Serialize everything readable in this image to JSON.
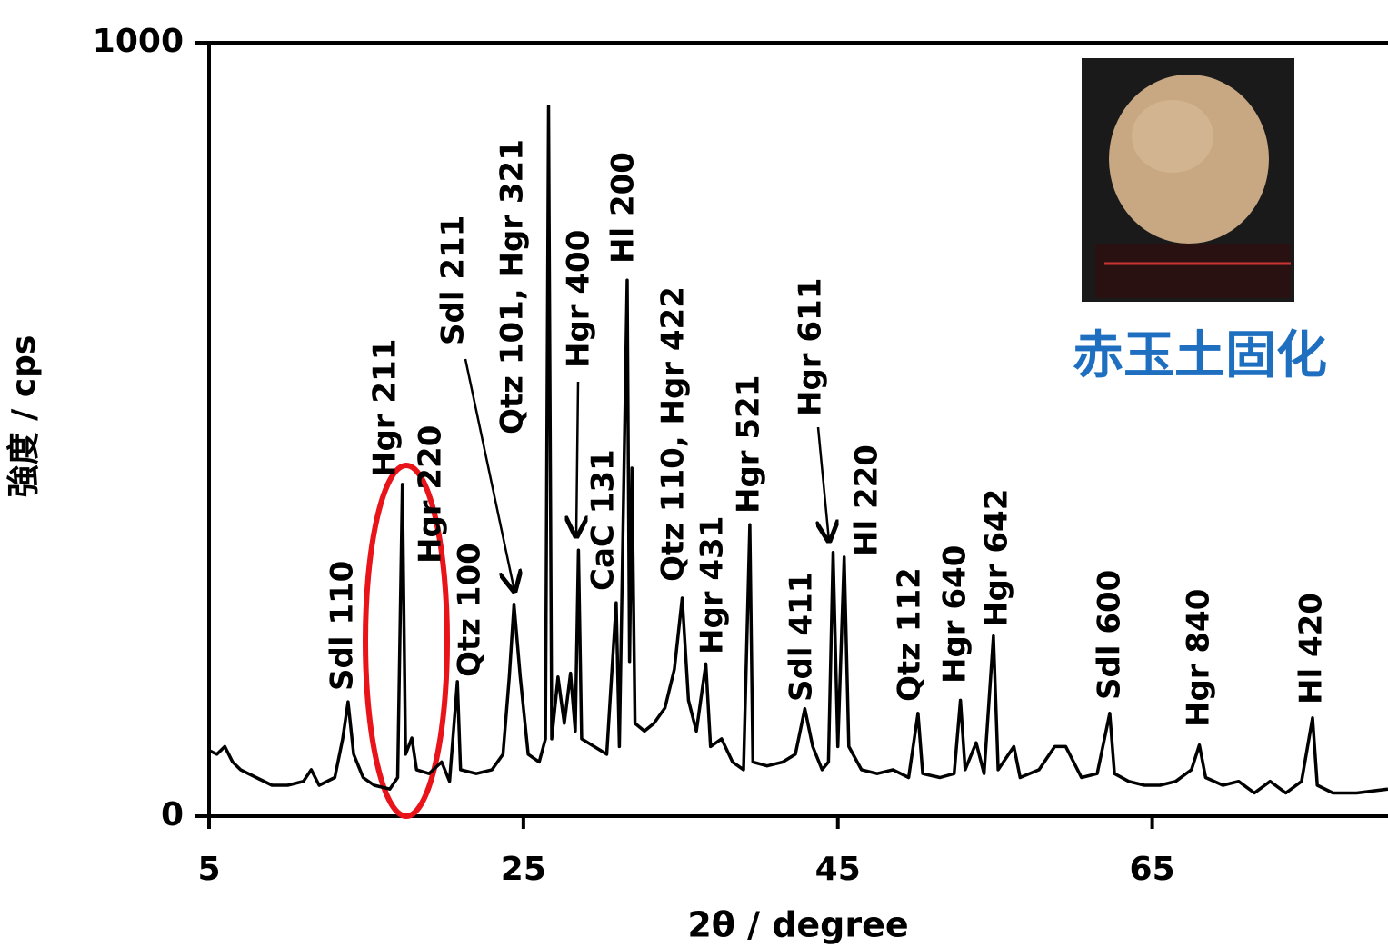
{
  "chart_data": {
    "type": "line",
    "x_label": "2θ / degree",
    "y_label": "強度 / cps",
    "inset_label": "赤玉土固化",
    "xlim": [
      5,
      80
    ],
    "xticks": [
      5,
      25,
      45,
      65
    ],
    "ylim": [
      0,
      1000
    ],
    "yticks": [
      0,
      1000
    ],
    "series": [
      {
        "color": "#000000",
        "x": [
          5,
          5.5,
          6,
          6.5,
          7,
          8,
          9,
          10,
          11,
          11.5,
          12,
          13,
          13.5,
          13.84,
          14.2,
          14.8,
          15.5,
          16.5,
          17.0,
          17.3,
          17.5,
          17.9,
          18.2,
          19,
          19.8,
          20.3,
          20.8,
          21.0,
          22,
          23,
          23.7,
          24.1,
          24.4,
          24.8,
          25.3,
          26.0,
          26.4,
          26.6,
          26.8,
          27.2,
          27.6,
          28.0,
          28.3,
          28.5,
          28.7,
          29.5,
          30.3,
          30.9,
          31.1,
          31.6,
          31.75,
          31.9,
          32.1,
          32.7,
          33.3,
          34.0,
          34.6,
          35.1,
          35.5,
          36.0,
          36.6,
          36.9,
          37.6,
          38.3,
          39.0,
          39.4,
          39.6,
          40.5,
          41.5,
          42.3,
          42.9,
          43.4,
          44.0,
          44.4,
          44.7,
          45.0,
          45.4,
          45.7,
          46.5,
          47.5,
          48.5,
          49.5,
          50.1,
          50.4,
          51.5,
          52.4,
          52.8,
          53.1,
          53.8,
          54.3,
          54.9,
          55.2,
          56.2,
          56.6,
          57.8,
          58.8,
          59.5,
          60.5,
          61.5,
          62.3,
          62.6,
          63.5,
          64.5,
          65.5,
          66.5,
          67.5,
          68.0,
          68.4,
          69.5,
          70.5,
          71.5,
          72.5,
          73.5,
          74.5,
          75.2,
          75.5,
          76.5,
          78,
          80
        ],
        "values": [
          85,
          80,
          90,
          70,
          60,
          50,
          40,
          40,
          45,
          60,
          40,
          50,
          100,
          148,
          80,
          50,
          40,
          35,
          50,
          429,
          80,
          101,
          60,
          55,
          70,
          45,
          174,
          60,
          55,
          60,
          80,
          180,
          274,
          180,
          80,
          70,
          100,
          918,
          100,
          180,
          120,
          185,
          110,
          344,
          100,
          90,
          80,
          276,
          90,
          693,
          200,
          450,
          120,
          110,
          120,
          140,
          190,
          282,
          150,
          110,
          197,
          90,
          100,
          70,
          60,
          377,
          70,
          65,
          70,
          80,
          139,
          90,
          60,
          70,
          341,
          90,
          335,
          90,
          60,
          55,
          60,
          50,
          133,
          55,
          50,
          55,
          150,
          60,
          95,
          55,
          233,
          60,
          90,
          50,
          60,
          90,
          90,
          50,
          55,
          133,
          55,
          45,
          40,
          40,
          45,
          60,
          92,
          50,
          40,
          45,
          30,
          45,
          30,
          45,
          127,
          40,
          30,
          30,
          35
        ]
      }
    ],
    "annotations": [
      "Sdl 110",
      "Hgr 211",
      "Hgr 220",
      "Qtz 100",
      "Sdl 211",
      "Qtz 101, Hgr 321",
      "Hgr 400",
      "CaC 131",
      "Hl 200",
      "Qtz 110, Hgr 422",
      "Hgr 431",
      "Hgr 521",
      "Sdl 411",
      "Hgr 611",
      "Hl 220",
      "Qtz 112",
      "Hgr 640",
      "Hgr 642",
      "Sdl 600",
      "Hgr 840",
      "Hl 420"
    ]
  }
}
